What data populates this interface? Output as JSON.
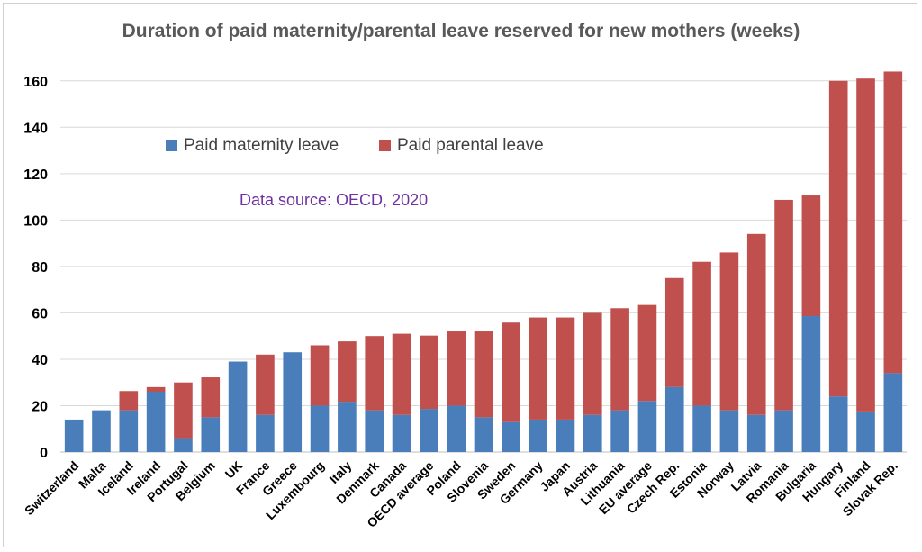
{
  "chart_data": {
    "type": "bar",
    "stacked": true,
    "title": "Duration of paid maternity/parental leave reserved for new mothers (weeks)",
    "annotation": "Data source: OECD, 2020",
    "ylim": [
      0,
      170
    ],
    "yticks": [
      0,
      20,
      40,
      60,
      80,
      100,
      120,
      140,
      160
    ],
    "grid": true,
    "legend_position": "top-left inside plot",
    "categories": [
      "Switzerland",
      "Malta",
      "Iceland",
      "Ireland",
      "Portugal",
      "Belgium",
      "UK",
      "France",
      "Greece",
      "Luxembourg",
      "Italy",
      "Denmark",
      "Canada",
      "OECD average",
      "Poland",
      "Slovenia",
      "Sweden",
      "Germany",
      "Japan",
      "Austria",
      "Lithuania",
      "EU average",
      "Czech Rep.",
      "Estonia",
      "Norway",
      "Latvia",
      "Romania",
      "Bulgaria",
      "Hungary",
      "Finland",
      "Slovak Rep."
    ],
    "series": [
      {
        "name": "Paid maternity leave",
        "color": "#4a7ebb",
        "values": [
          14,
          18,
          18,
          26,
          6,
          15,
          39,
          16,
          43,
          20,
          21.7,
          18,
          16,
          18.6,
          20,
          15,
          12.9,
          14,
          14,
          16,
          18,
          22,
          28,
          20,
          18,
          16,
          18,
          58.6,
          24,
          17.5,
          34
        ]
      },
      {
        "name": "Paid parental leave",
        "color": "#c0504d",
        "values": [
          0,
          0,
          8.3,
          2,
          24,
          17.2,
          0,
          26,
          0,
          26,
          26,
          32,
          35,
          31.6,
          32,
          37,
          42.9,
          44,
          44,
          44,
          44,
          41.4,
          47,
          62,
          68,
          78,
          90.7,
          52,
          136,
          143.5,
          130
        ]
      }
    ]
  }
}
